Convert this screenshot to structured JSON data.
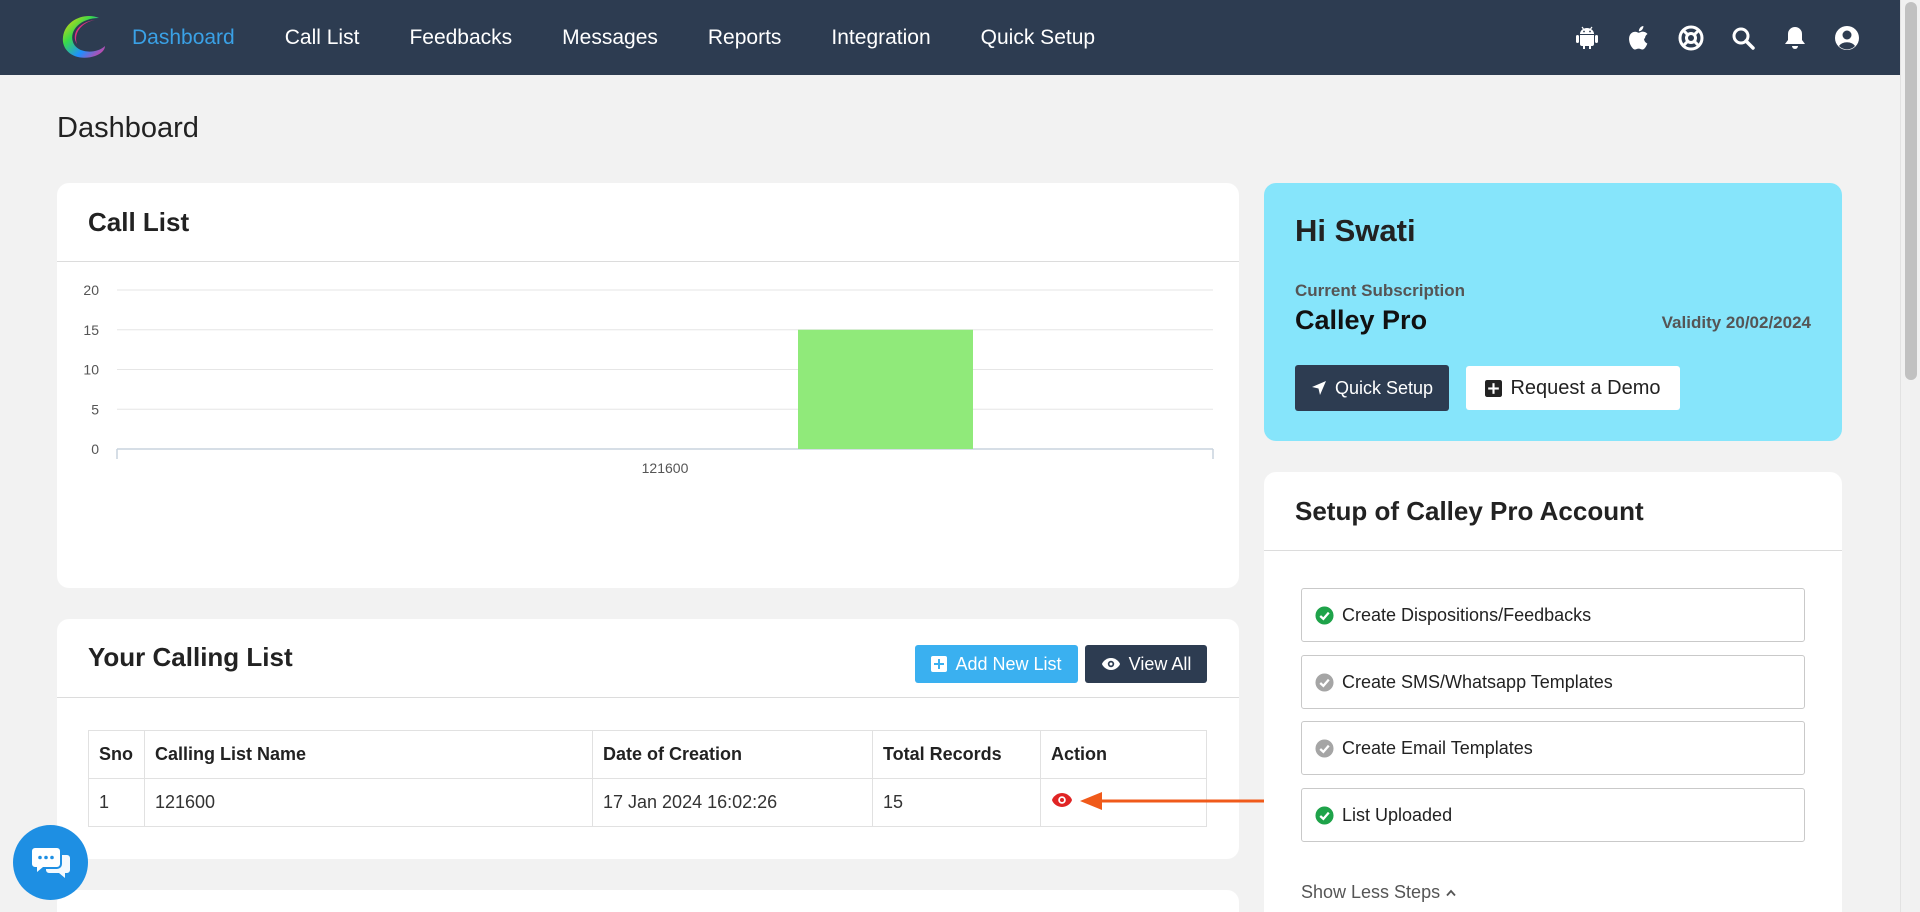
{
  "nav": {
    "items": [
      {
        "label": "Dashboard",
        "active": true
      },
      {
        "label": "Call List",
        "active": false
      },
      {
        "label": "Feedbacks",
        "active": false
      },
      {
        "label": "Messages",
        "active": false
      },
      {
        "label": "Reports",
        "active": false
      },
      {
        "label": "Integration",
        "active": false
      },
      {
        "label": "Quick Setup",
        "active": false
      }
    ],
    "icons": [
      "android-icon",
      "apple-icon",
      "support-icon",
      "search-icon",
      "bell-icon",
      "user-icon"
    ]
  },
  "page": {
    "title": "Dashboard"
  },
  "call_list_card": {
    "title": "Call List"
  },
  "chart_data": {
    "type": "bar",
    "categories": [
      "121600"
    ],
    "values": [
      15
    ],
    "ylim": [
      0,
      20
    ],
    "yticks": [
      0,
      5,
      10,
      15,
      20
    ],
    "bar_color": "#90ea7a",
    "grid": true
  },
  "calling_list": {
    "title": "Your Calling List",
    "add_label": "Add New List",
    "view_all_label": "View All",
    "columns": [
      "Sno",
      "Calling List Name",
      "Date of Creation",
      "Total Records",
      "Action"
    ],
    "rows": [
      {
        "sno": "1",
        "name": "121600",
        "date": "17 Jan 2024 16:02:26",
        "records": "15"
      }
    ]
  },
  "greeting": {
    "title": "Hi Swati",
    "subscription_label": "Current Subscription",
    "plan": "Calley Pro",
    "validity": "Validity 20/02/2024",
    "quick_setup_label": "Quick Setup",
    "demo_label": "Request a Demo"
  },
  "setup": {
    "title": "Setup of Calley Pro Account",
    "steps": [
      {
        "label": "Create Dispositions/Feedbacks",
        "done": true
      },
      {
        "label": "Create SMS/Whatsapp Templates",
        "done": false
      },
      {
        "label": "Create Email Templates",
        "done": false
      },
      {
        "label": "List Uploaded",
        "done": true
      }
    ],
    "show_less_label": "Show Less Steps"
  },
  "colors": {
    "nav_bg": "#2d3c51",
    "accent": "#3aa1e6",
    "greeting_bg": "#86e5fb",
    "add_btn": "#3ab0f0",
    "done_green": "#1fa34a",
    "pending_gray": "#a5a5a5",
    "action_red": "#e02424",
    "arrow_orange": "#f05a1a"
  }
}
